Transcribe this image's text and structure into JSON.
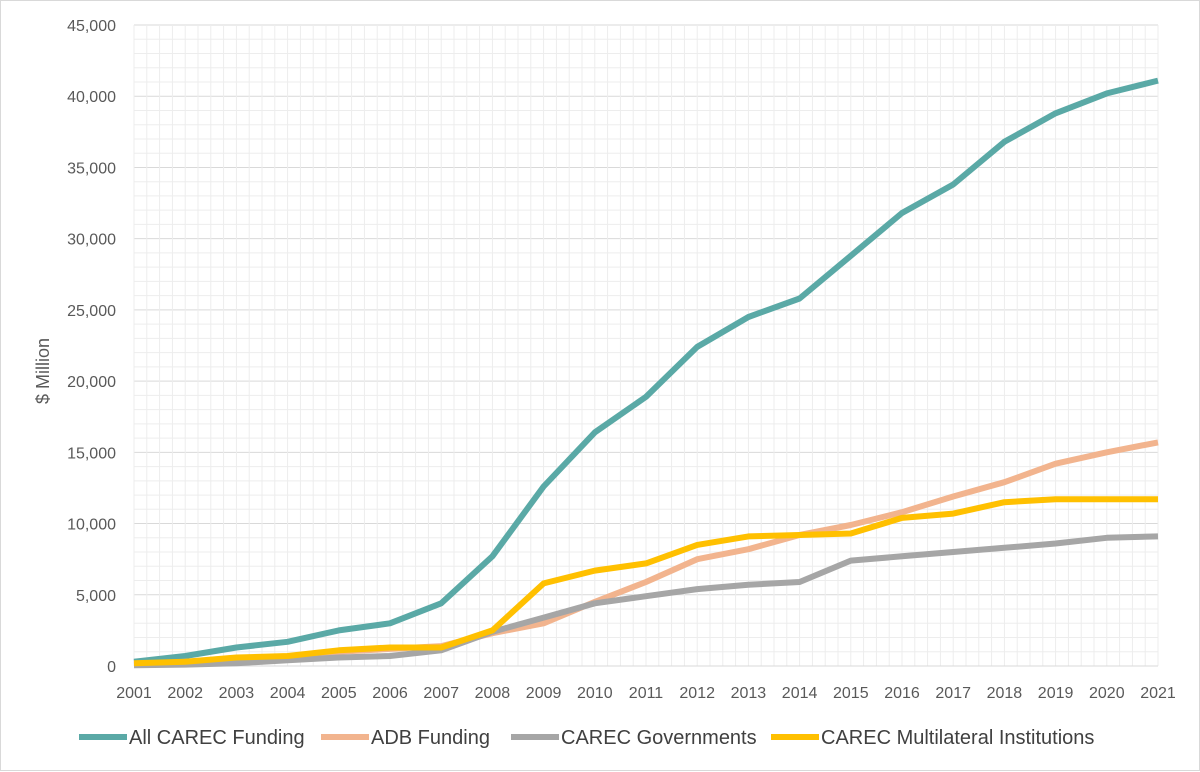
{
  "chart_data": {
    "type": "line",
    "title": "",
    "xlabel": "",
    "ylabel": "$ Million",
    "ylim": [
      0,
      45000
    ],
    "yticks": [
      "0",
      "5,000",
      "10,000",
      "15,000",
      "20,000",
      "25,000",
      "30,000",
      "35,000",
      "40,000",
      "45,000"
    ],
    "categories": [
      "2001",
      "2002",
      "2003",
      "2004",
      "2005",
      "2006",
      "2007",
      "2008",
      "2009",
      "2010",
      "2011",
      "2012",
      "2013",
      "2014",
      "2015",
      "2016",
      "2017",
      "2018",
      "2019",
      "2020",
      "2021"
    ],
    "grid": true,
    "legend_position": "bottom",
    "series": [
      {
        "name": "All CAREC Funding",
        "color": "#5aa9a6",
        "values": [
          300,
          700,
          1300,
          1700,
          2500,
          3000,
          4400,
          7700,
          12600,
          16400,
          18900,
          22400,
          24500,
          25800,
          28800,
          31800,
          33800,
          36800,
          38800,
          40200,
          41100
        ]
      },
      {
        "name": "ADB Funding",
        "color": "#f2b48e",
        "values": [
          100,
          300,
          500,
          600,
          1000,
          1200,
          1400,
          2300,
          3000,
          4500,
          5900,
          7500,
          8200,
          9200,
          9900,
          10800,
          11900,
          12900,
          14200,
          15000,
          15700
        ]
      },
      {
        "name": "CAREC  Governments",
        "color": "#a6a6a6",
        "values": [
          50,
          100,
          200,
          400,
          600,
          700,
          1100,
          2400,
          3400,
          4400,
          4900,
          5400,
          5700,
          5900,
          7400,
          7700,
          8000,
          8300,
          8600,
          9000,
          9100
        ]
      },
      {
        "name": "CAREC Multilateral Institutions",
        "color": "#ffc000",
        "values": [
          200,
          300,
          600,
          700,
          1100,
          1300,
          1300,
          2500,
          5800,
          6700,
          7200,
          8500,
          9100,
          9200,
          9300,
          10400,
          10700,
          11500,
          11700,
          11700,
          11700
        ]
      }
    ]
  }
}
